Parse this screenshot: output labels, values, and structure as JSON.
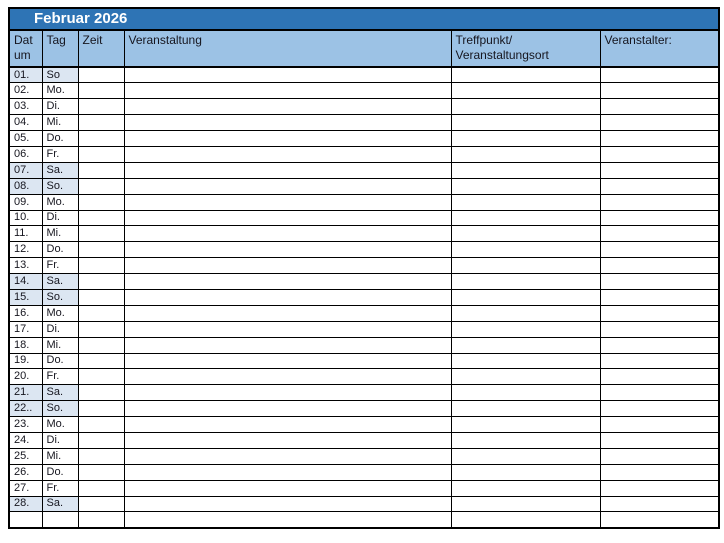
{
  "calendar": {
    "title": "Februar 2026",
    "headers": {
      "datum": "Datum",
      "tag": "Tag",
      "zeit": "Zeit",
      "veranstaltung": "Veranstaltung",
      "treffpunkt": "Treffpunkt/\nVeranstaltungsort",
      "veranstalter": "Veranstalter:"
    },
    "colors": {
      "title_bar": "#2e74b5",
      "title_text": "#ffffff",
      "header_bg": "#9cc2e5",
      "weekend_bg": "#dce6f2",
      "border": "#000000"
    },
    "rows": [
      {
        "datum": "01.",
        "tag": "So",
        "weekend": true,
        "zeit": "",
        "veranstaltung": "",
        "treffpunkt": "",
        "veranstalter": ""
      },
      {
        "datum": "02.",
        "tag": "Mo.",
        "weekend": false,
        "zeit": "",
        "veranstaltung": "",
        "treffpunkt": "",
        "veranstalter": ""
      },
      {
        "datum": "03.",
        "tag": "Di.",
        "weekend": false,
        "zeit": "",
        "veranstaltung": "",
        "treffpunkt": "",
        "veranstalter": ""
      },
      {
        "datum": "04.",
        "tag": "Mi.",
        "weekend": false,
        "zeit": "",
        "veranstaltung": "",
        "treffpunkt": "",
        "veranstalter": ""
      },
      {
        "datum": "05.",
        "tag": "Do.",
        "weekend": false,
        "zeit": "",
        "veranstaltung": "",
        "treffpunkt": "",
        "veranstalter": ""
      },
      {
        "datum": "06.",
        "tag": "Fr.",
        "weekend": false,
        "zeit": "",
        "veranstaltung": "",
        "treffpunkt": "",
        "veranstalter": ""
      },
      {
        "datum": "07.",
        "tag": "Sa.",
        "weekend": true,
        "zeit": "",
        "veranstaltung": "",
        "treffpunkt": "",
        "veranstalter": ""
      },
      {
        "datum": "08.",
        "tag": "So.",
        "weekend": true,
        "zeit": "",
        "veranstaltung": "",
        "treffpunkt": "",
        "veranstalter": ""
      },
      {
        "datum": "09.",
        "tag": "Mo.",
        "weekend": false,
        "zeit": "",
        "veranstaltung": "",
        "treffpunkt": "",
        "veranstalter": ""
      },
      {
        "datum": "10.",
        "tag": "Di.",
        "weekend": false,
        "zeit": "",
        "veranstaltung": "",
        "treffpunkt": "",
        "veranstalter": ""
      },
      {
        "datum": "11.",
        "tag": "Mi.",
        "weekend": false,
        "zeit": "",
        "veranstaltung": "",
        "treffpunkt": "",
        "veranstalter": ""
      },
      {
        "datum": "12.",
        "tag": "Do.",
        "weekend": false,
        "zeit": "",
        "veranstaltung": "",
        "treffpunkt": "",
        "veranstalter": ""
      },
      {
        "datum": "13.",
        "tag": "Fr.",
        "weekend": false,
        "zeit": "",
        "veranstaltung": "",
        "treffpunkt": "",
        "veranstalter": ""
      },
      {
        "datum": "14.",
        "tag": "Sa.",
        "weekend": true,
        "zeit": "",
        "veranstaltung": "",
        "treffpunkt": "",
        "veranstalter": ""
      },
      {
        "datum": "15.",
        "tag": "So.",
        "weekend": true,
        "zeit": "",
        "veranstaltung": "",
        "treffpunkt": "",
        "veranstalter": ""
      },
      {
        "datum": "16.",
        "tag": "Mo.",
        "weekend": false,
        "zeit": "",
        "veranstaltung": "",
        "treffpunkt": "",
        "veranstalter": ""
      },
      {
        "datum": "17.",
        "tag": "Di.",
        "weekend": false,
        "zeit": "",
        "veranstaltung": "",
        "treffpunkt": "",
        "veranstalter": ""
      },
      {
        "datum": "18.",
        "tag": "Mi.",
        "weekend": false,
        "zeit": "",
        "veranstaltung": "",
        "treffpunkt": "",
        "veranstalter": ""
      },
      {
        "datum": "19.",
        "tag": "Do.",
        "weekend": false,
        "zeit": "",
        "veranstaltung": "",
        "treffpunkt": "",
        "veranstalter": ""
      },
      {
        "datum": "20.",
        "tag": "Fr.",
        "weekend": false,
        "zeit": "",
        "veranstaltung": "",
        "treffpunkt": "",
        "veranstalter": ""
      },
      {
        "datum": "21.",
        "tag": "Sa.",
        "weekend": true,
        "zeit": "",
        "veranstaltung": "",
        "treffpunkt": "",
        "veranstalter": ""
      },
      {
        "datum": "22..",
        "tag": "So.",
        "weekend": true,
        "zeit": "",
        "veranstaltung": "",
        "treffpunkt": "",
        "veranstalter": ""
      },
      {
        "datum": "23.",
        "tag": "Mo.",
        "weekend": false,
        "zeit": "",
        "veranstaltung": "",
        "treffpunkt": "",
        "veranstalter": ""
      },
      {
        "datum": "24.",
        "tag": "Di.",
        "weekend": false,
        "zeit": "",
        "veranstaltung": "",
        "treffpunkt": "",
        "veranstalter": ""
      },
      {
        "datum": "25.",
        "tag": "Mi.",
        "weekend": false,
        "zeit": "",
        "veranstaltung": "",
        "treffpunkt": "",
        "veranstalter": ""
      },
      {
        "datum": "26.",
        "tag": "Do.",
        "weekend": false,
        "zeit": "",
        "veranstaltung": "",
        "treffpunkt": "",
        "veranstalter": ""
      },
      {
        "datum": "27.",
        "tag": "Fr.",
        "weekend": false,
        "zeit": "",
        "veranstaltung": "",
        "treffpunkt": "",
        "veranstalter": ""
      },
      {
        "datum": "28.",
        "tag": "Sa.",
        "weekend": true,
        "zeit": "",
        "veranstaltung": "",
        "treffpunkt": "",
        "veranstalter": ""
      },
      {
        "datum": "",
        "tag": "",
        "weekend": false,
        "partial": true,
        "zeit": "",
        "veranstaltung": "",
        "treffpunkt": "",
        "veranstalter": ""
      }
    ]
  }
}
